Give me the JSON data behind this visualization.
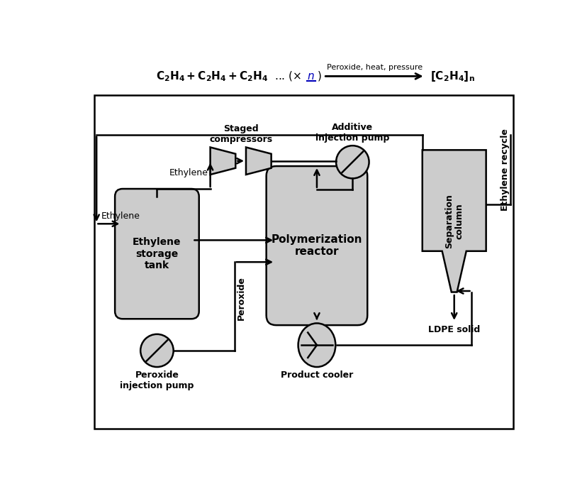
{
  "bg_color": "#ffffff",
  "component_fill": "#cccccc",
  "component_edge": "#000000",
  "labels": {
    "ethylene_storage": "Ethylene\nstorage\ntank",
    "polymerization": "Polymerization\nreactor",
    "separation": "Separation\ncolumn",
    "staged_compressors": "Staged\ncompressors",
    "additive_pump": "Additive\ninjection pump",
    "peroxide_pump": "Peroxide\ninjection pump",
    "product_cooler": "Product cooler",
    "ethylene_recycle": "Ethylene recycle",
    "ldpe": "LDPE solid",
    "ethylene_input": "Ethylene",
    "peroxide_label": "Peroxide"
  },
  "eq_left": "C₂H₄ + C₂H₄ + C₂H₄ ... (× ",
  "eq_n": "n",
  "eq_right": ")",
  "eq_arrow_label": "Peroxide, heat, pressure",
  "eq_product": "[C₂H₄]ₙ"
}
